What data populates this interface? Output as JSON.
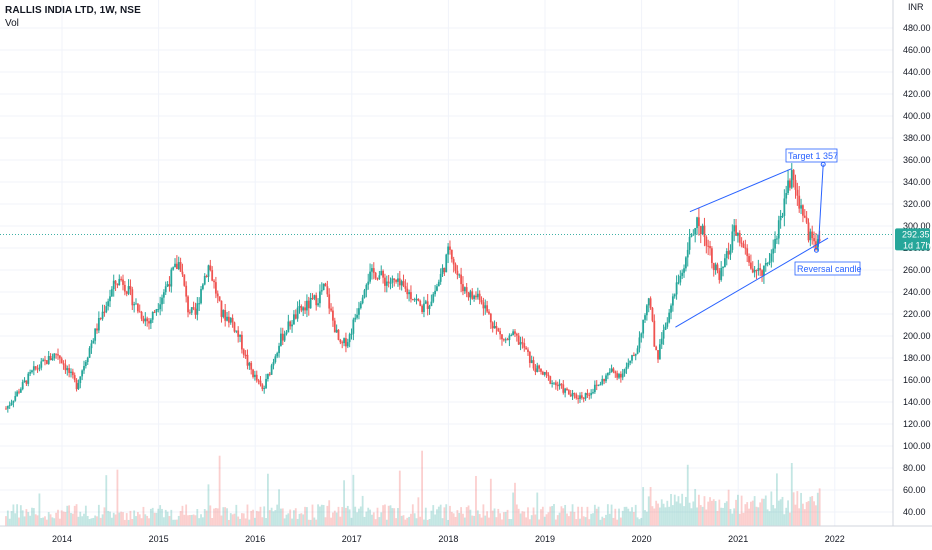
{
  "header": {
    "title": "RALLIS INDIA LTD, 1W, NSE",
    "vol_label": "Vol"
  },
  "currency": "INR",
  "colors": {
    "up": "#26a69a",
    "down": "#ef5350",
    "drawing": "#2962ff",
    "price_line": "#26a69a"
  },
  "price_tag": {
    "price": "292.35",
    "countdown": "1d 17h"
  },
  "annotations": {
    "target": "Target 1 357",
    "reversal": "Reversal candle"
  },
  "chart_data": {
    "type": "candlestick",
    "title": "RALLIS INDIA LTD, 1W, NSE",
    "x_axis": {
      "ticks": [
        "2014",
        "2015",
        "2016",
        "2017",
        "2018",
        "2019",
        "2020",
        "2021",
        "2022"
      ],
      "range": [
        2013.4,
        2022.5
      ]
    },
    "y_axis": {
      "ticks": [
        "40.00",
        "60.00",
        "80.00",
        "100.00",
        "120.00",
        "140.00",
        "160.00",
        "180.00",
        "200.00",
        "220.00",
        "240.00",
        "260.00",
        "280.00",
        "300.00",
        "320.00",
        "340.00",
        "360.00",
        "380.00",
        "400.00",
        "420.00",
        "440.00",
        "460.00",
        "480.00"
      ],
      "range": [
        30,
        485
      ],
      "unit": "INR",
      "position": "right"
    },
    "current_price": 292.35,
    "grid": true,
    "price_path": [
      [
        2013.42,
        134
      ],
      [
        2013.55,
        150
      ],
      [
        2013.7,
        168
      ],
      [
        2013.85,
        178
      ],
      [
        2013.95,
        185
      ],
      [
        2014.05,
        170
      ],
      [
        2014.15,
        155
      ],
      [
        2014.25,
        180
      ],
      [
        2014.35,
        205
      ],
      [
        2014.45,
        228
      ],
      [
        2014.55,
        248
      ],
      [
        2014.62,
        252
      ],
      [
        2014.7,
        238
      ],
      [
        2014.8,
        222
      ],
      [
        2014.9,
        212
      ],
      [
        2014.97,
        225
      ],
      [
        2015.05,
        240
      ],
      [
        2015.15,
        258
      ],
      [
        2015.22,
        268
      ],
      [
        2015.3,
        225
      ],
      [
        2015.38,
        218
      ],
      [
        2015.45,
        248
      ],
      [
        2015.52,
        265
      ],
      [
        2015.58,
        245
      ],
      [
        2015.65,
        220
      ],
      [
        2015.75,
        215
      ],
      [
        2015.85,
        195
      ],
      [
        2015.92,
        175
      ],
      [
        2016.0,
        162
      ],
      [
        2016.08,
        150
      ],
      [
        2016.15,
        168
      ],
      [
        2016.25,
        195
      ],
      [
        2016.35,
        210
      ],
      [
        2016.45,
        222
      ],
      [
        2016.55,
        228
      ],
      [
        2016.65,
        235
      ],
      [
        2016.72,
        245
      ],
      [
        2016.8,
        215
      ],
      [
        2016.88,
        190
      ],
      [
        2016.97,
        198
      ],
      [
        2017.05,
        222
      ],
      [
        2017.15,
        252
      ],
      [
        2017.25,
        258
      ],
      [
        2017.35,
        250
      ],
      [
        2017.45,
        248
      ],
      [
        2017.55,
        242
      ],
      [
        2017.65,
        235
      ],
      [
        2017.72,
        225
      ],
      [
        2017.8,
        230
      ],
      [
        2017.88,
        245
      ],
      [
        2017.95,
        262
      ],
      [
        2018.02,
        282
      ],
      [
        2018.08,
        258
      ],
      [
        2018.15,
        245
      ],
      [
        2018.25,
        235
      ],
      [
        2018.32,
        238
      ],
      [
        2018.4,
        222
      ],
      [
        2018.5,
        205
      ],
      [
        2018.58,
        195
      ],
      [
        2018.68,
        200
      ],
      [
        2018.78,
        190
      ],
      [
        2018.88,
        172
      ],
      [
        2018.98,
        165
      ],
      [
        2019.08,
        158
      ],
      [
        2019.18,
        152
      ],
      [
        2019.28,
        145
      ],
      [
        2019.38,
        145
      ],
      [
        2019.48,
        150
      ],
      [
        2019.58,
        158
      ],
      [
        2019.68,
        168
      ],
      [
        2019.78,
        165
      ],
      [
        2019.88,
        175
      ],
      [
        2019.95,
        188
      ],
      [
        2020.02,
        215
      ],
      [
        2020.08,
        238
      ],
      [
        2020.13,
        195
      ],
      [
        2020.17,
        182
      ],
      [
        2020.22,
        205
      ],
      [
        2020.3,
        225
      ],
      [
        2020.38,
        248
      ],
      [
        2020.48,
        280
      ],
      [
        2020.56,
        305
      ],
      [
        2020.64,
        295
      ],
      [
        2020.72,
        275
      ],
      [
        2020.8,
        250
      ],
      [
        2020.88,
        270
      ],
      [
        2020.96,
        295
      ],
      [
        2021.04,
        282
      ],
      [
        2021.12,
        265
      ],
      [
        2021.2,
        255
      ],
      [
        2021.28,
        265
      ],
      [
        2021.36,
        280
      ],
      [
        2021.44,
        308
      ],
      [
        2021.5,
        335
      ],
      [
        2021.56,
        345
      ],
      [
        2021.62,
        325
      ],
      [
        2021.68,
        310
      ],
      [
        2021.74,
        290
      ],
      [
        2021.8,
        282
      ],
      [
        2021.85,
        292
      ]
    ],
    "annotations": [
      "Target 1 357",
      "Reversal candle"
    ]
  }
}
